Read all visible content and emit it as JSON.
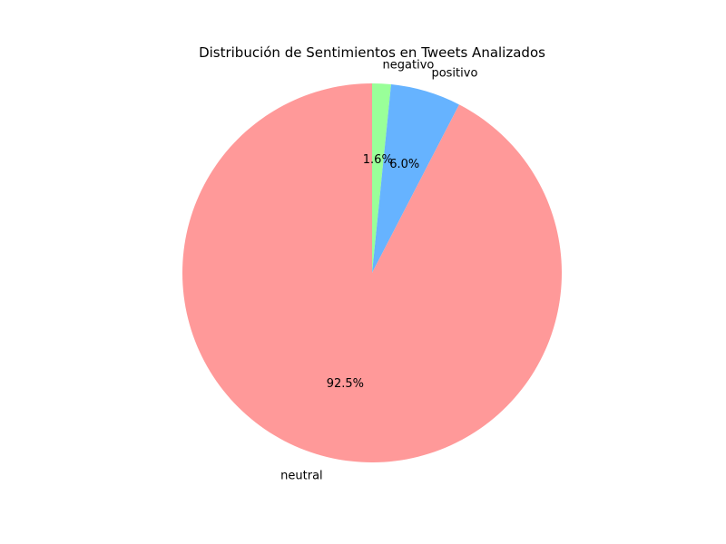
{
  "chart_data": {
    "type": "pie",
    "title": "Distribución de Sentimientos en Tweets Analizados",
    "start_angle_deg": 90,
    "direction": "clockwise",
    "slices": [
      {
        "label": "negativo",
        "value": 1.6,
        "pct_label": "1.6%",
        "color": "#99ff99"
      },
      {
        "label": "positivo",
        "value": 6.0,
        "pct_label": "6.0%",
        "color": "#66b3ff"
      },
      {
        "label": "neutral",
        "value": 92.5,
        "pct_label": "92.5%",
        "color": "#ff9999"
      }
    ]
  }
}
